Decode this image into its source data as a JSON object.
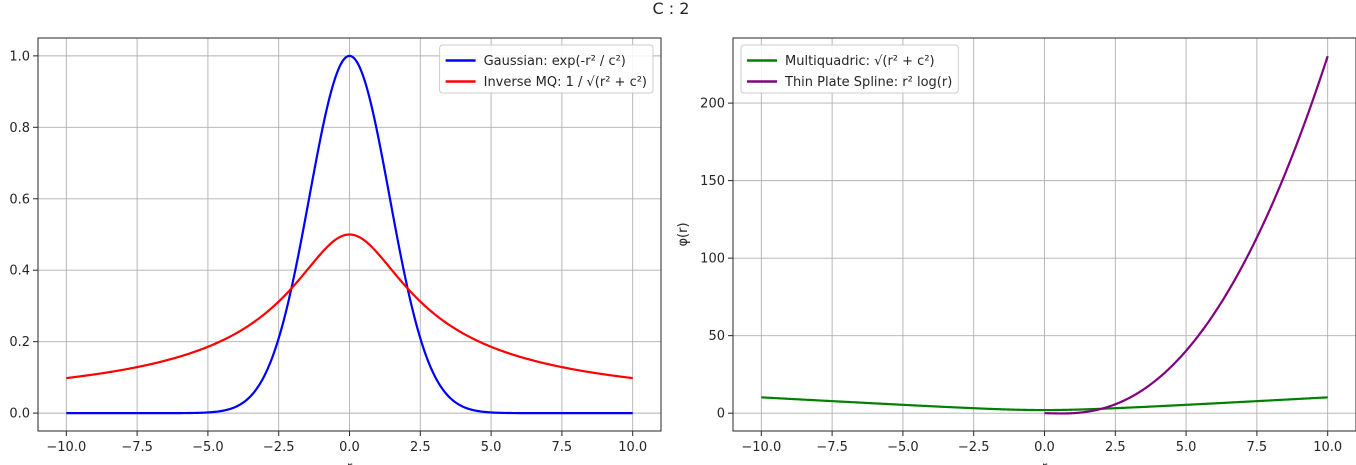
{
  "figure": {
    "suptitle": "C : 2"
  },
  "chart_data": [
    {
      "type": "line",
      "xlabel": "r",
      "ylabel": "",
      "xlim": [
        -11,
        11
      ],
      "ylim": [
        -0.05,
        1.05
      ],
      "xticks": [
        -10,
        -7.5,
        -5,
        -2.5,
        0,
        2.5,
        5,
        7.5,
        10
      ],
      "xtick_labels": [
        "−10.0",
        "−7.5",
        "−5.0",
        "−2.5",
        "0.0",
        "2.5",
        "5.0",
        "7.5",
        "10.0"
      ],
      "yticks": [
        0,
        0.2,
        0.4,
        0.6,
        0.8,
        1.0
      ],
      "ytick_labels": [
        "0.0",
        "0.2",
        "0.4",
        "0.6",
        "0.8",
        "1.0"
      ],
      "grid": true,
      "legend_position": "top-right",
      "c": 2,
      "series": [
        {
          "name": "Gaussian: exp(-r² / c²)",
          "color": "#0000ff",
          "function": "gaussian",
          "x_range": [
            -10,
            10
          ]
        },
        {
          "name": "Inverse MQ: 1 / √(r² + c²)",
          "color": "#ff0000",
          "function": "inverse_multiquadric",
          "x_range": [
            -10,
            10
          ]
        }
      ]
    },
    {
      "type": "line",
      "xlabel": "r",
      "ylabel": "φ(r)",
      "xlim": [
        -11,
        11
      ],
      "ylim": [
        -11.5,
        242
      ],
      "xticks": [
        -10,
        -7.5,
        -5,
        -2.5,
        0,
        2.5,
        5,
        7.5,
        10
      ],
      "xtick_labels": [
        "−10.0",
        "−7.5",
        "−5.0",
        "−2.5",
        "0.0",
        "2.5",
        "5.0",
        "7.5",
        "10.0"
      ],
      "yticks": [
        0,
        50,
        100,
        150,
        200
      ],
      "ytick_labels": [
        "0",
        "50",
        "100",
        "150",
        "200"
      ],
      "grid": true,
      "legend_position": "top-left",
      "c": 2,
      "series": [
        {
          "name": "Multiquadric: √(r² + c²)",
          "color": "#008000",
          "function": "multiquadric",
          "x_range": [
            -10,
            10
          ]
        },
        {
          "name": "Thin Plate Spline: r² log(r)",
          "color": "#800080",
          "function": "thin_plate_spline",
          "x_range": [
            0,
            10
          ]
        }
      ]
    }
  ]
}
